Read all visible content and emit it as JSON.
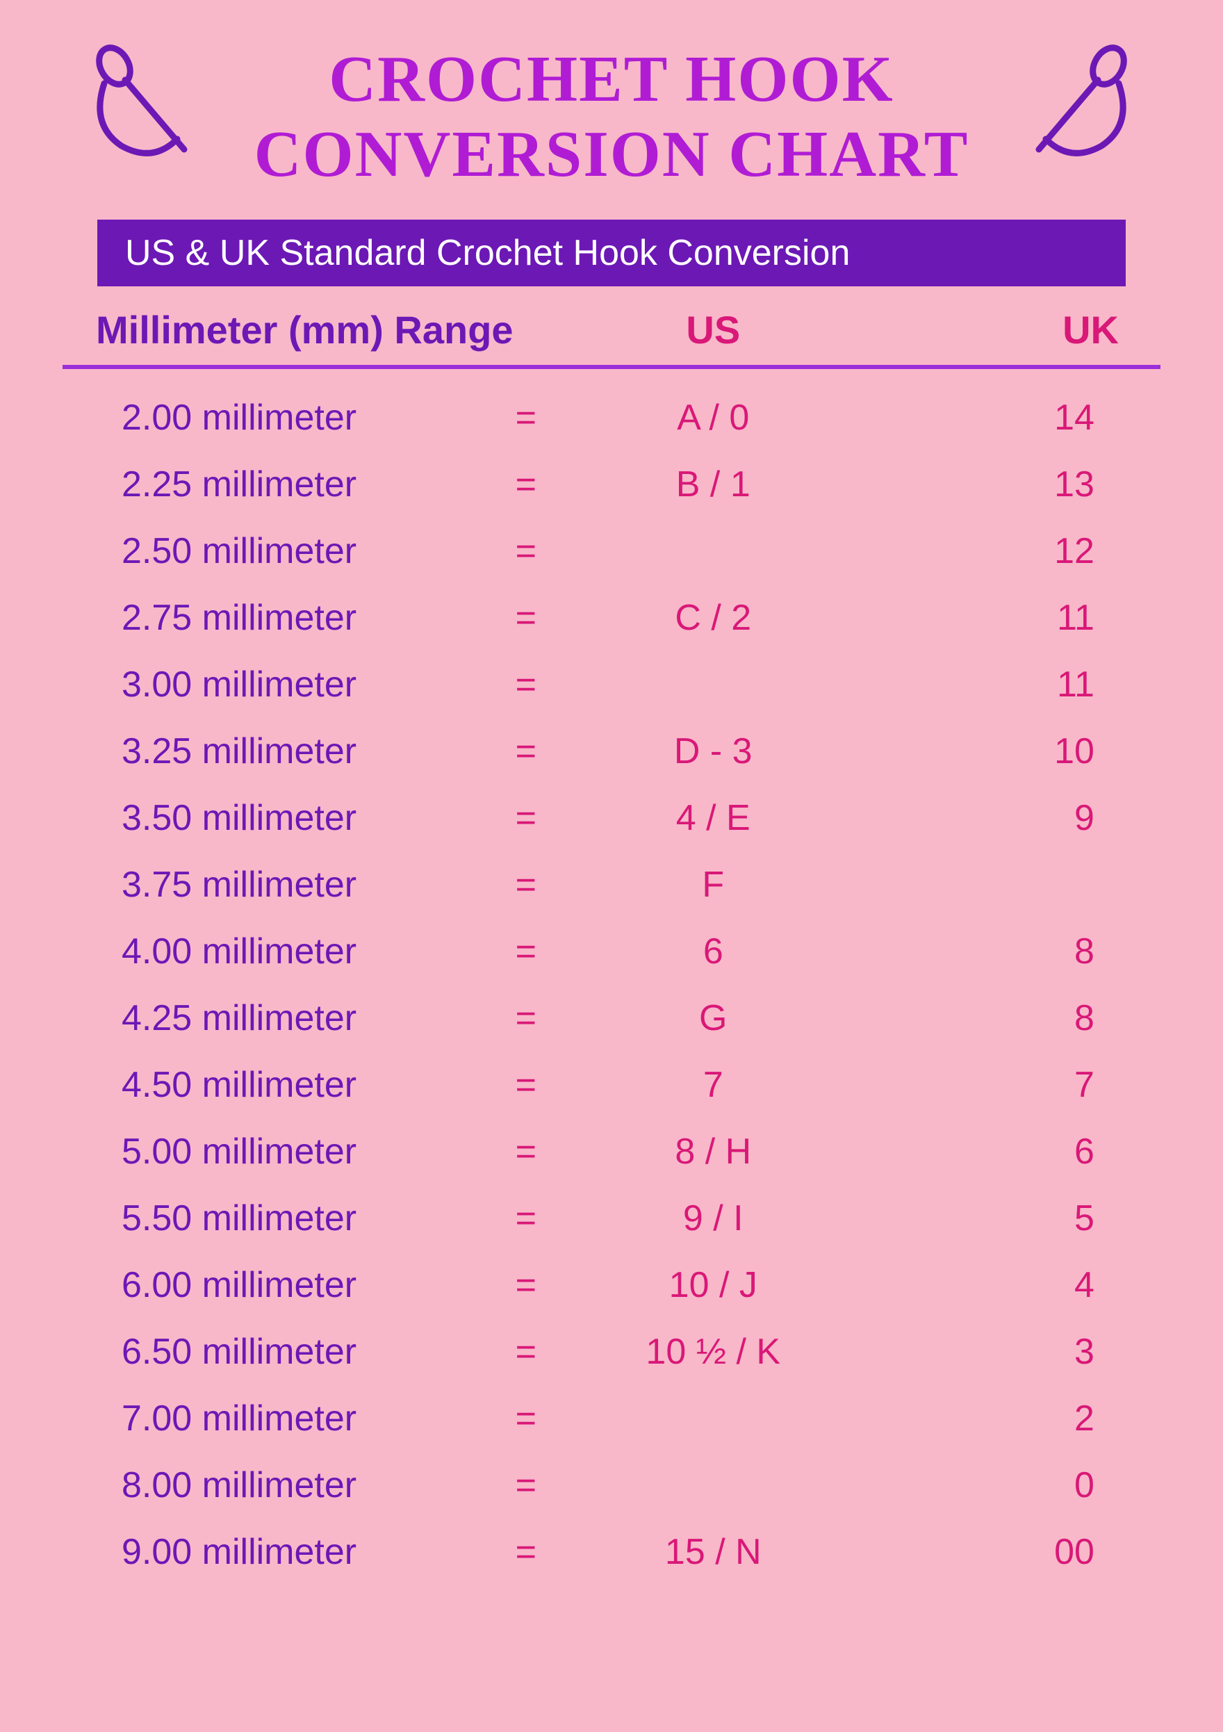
{
  "title_line1": "CROCHET HOOK",
  "title_line2": "CONVERSION CHART",
  "subtitle": "US & UK Standard Crochet Hook Conversion",
  "headers": {
    "mm": "Millimeter (mm) Range",
    "us": "US",
    "uk": "UK"
  },
  "colors": {
    "background": "#f8b8c9",
    "title": "#b01cd4",
    "purple": "#6c18b5",
    "magenta": "#d91878",
    "divider": "#9b2fd9"
  },
  "rows": [
    {
      "mm": "2.00 millimeter",
      "us": "A / 0",
      "uk": "14"
    },
    {
      "mm": "2.25 millimeter",
      "us": "B / 1",
      "uk": "13"
    },
    {
      "mm": "2.50 millimeter",
      "us": "",
      "uk": "12"
    },
    {
      "mm": "2.75 millimeter",
      "us": "C / 2",
      "uk": "11"
    },
    {
      "mm": "3.00 millimeter",
      "us": "",
      "uk": "11"
    },
    {
      "mm": "3.25 millimeter",
      "us": "D - 3",
      "uk": "10"
    },
    {
      "mm": "3.50 millimeter",
      "us": "4 / E",
      "uk": "9"
    },
    {
      "mm": "3.75 millimeter",
      "us": "F",
      "uk": ""
    },
    {
      "mm": "4.00 millimeter",
      "us": "6",
      "uk": "8"
    },
    {
      "mm": "4.25 millimeter",
      "us": "G",
      "uk": "8"
    },
    {
      "mm": "4.50 millimeter",
      "us": "7",
      "uk": "7"
    },
    {
      "mm": "5.00 millimeter",
      "us": "8 / H",
      "uk": "6"
    },
    {
      "mm": "5.50 millimeter",
      "us": "9 / I",
      "uk": "5"
    },
    {
      "mm": "6.00 millimeter",
      "us": "10 / J",
      "uk": "4"
    },
    {
      "mm": "6.50 millimeter",
      "us": "10 ½ / K",
      "uk": "3"
    },
    {
      "mm": "7.00 millimeter",
      "us": "",
      "uk": "2"
    },
    {
      "mm": "8.00 millimeter",
      "us": "",
      "uk": "0"
    },
    {
      "mm": "9.00 millimeter",
      "us": "15 / N",
      "uk": "00"
    }
  ]
}
